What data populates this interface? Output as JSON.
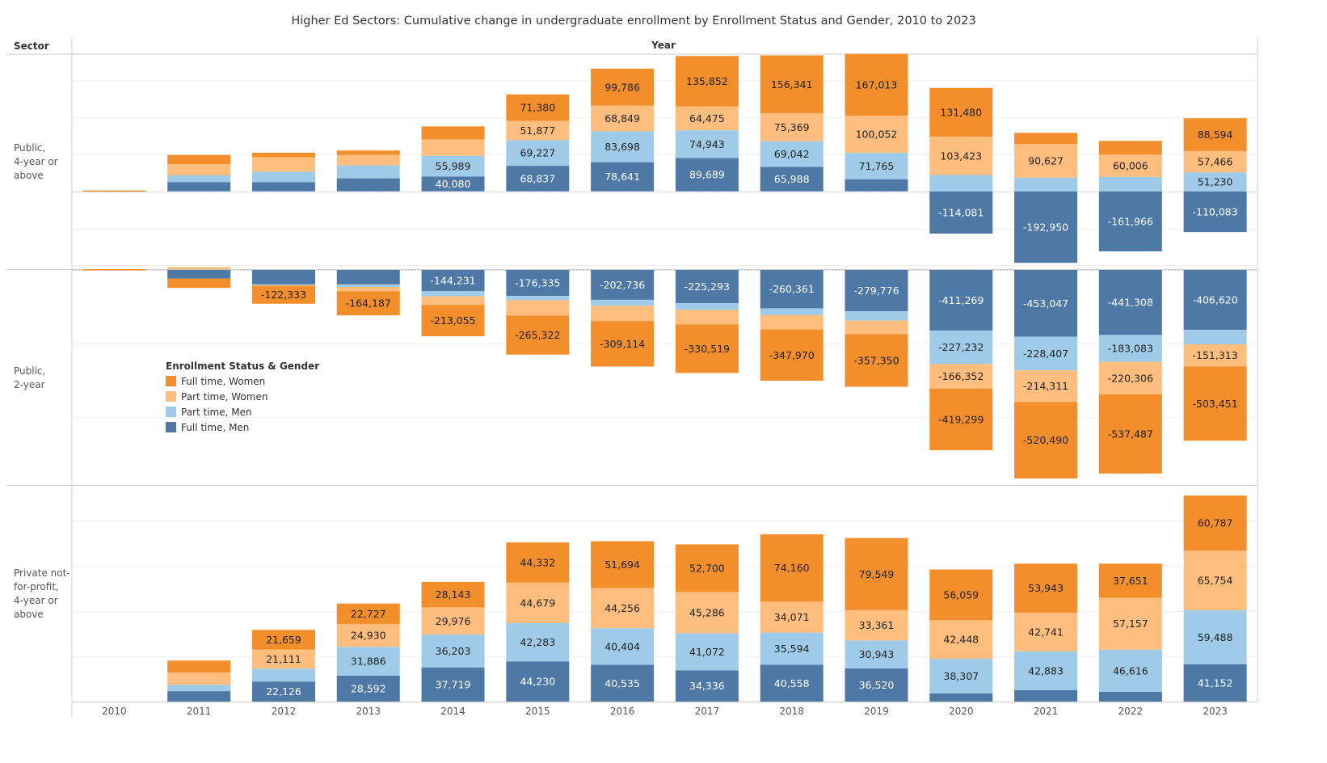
{
  "chart_data": {
    "type": "bar",
    "stacked": true,
    "title": "Higher Ed Sectors: Cumulative change in undergraduate enrollment by Enrollment Status and Gender, 2010 to 2023",
    "row_header": "Sector",
    "column_header": "Year",
    "xlabel": "",
    "ylabel": "",
    "categories": [
      "2010",
      "2011",
      "2012",
      "2013",
      "2014",
      "2015",
      "2016",
      "2017",
      "2018",
      "2019",
      "2020",
      "2021",
      "2022",
      "2023"
    ],
    "legend": {
      "title": "Enrollment Status & Gender",
      "position": "inside-middle-left",
      "entries": [
        {
          "name": "Full time, Women",
          "color": "#f28e2b"
        },
        {
          "name": "Part time, Women",
          "color": "#ffbe7d"
        },
        {
          "name": "Part time, Men",
          "color": "#a0cbe8"
        },
        {
          "name": "Full time, Men",
          "color": "#4e79a7"
        }
      ]
    },
    "series_order_note": "stack order from baseline: Full time Men, Part time Men, Part time Women, Full time Women",
    "panels": [
      {
        "sector": "Public,\n4-year or\nabove",
        "sector_lines": [
          "Public,",
          "4-year or",
          "above"
        ],
        "ylim": [
          -210000,
          370000
        ],
        "gridlines": [
          -200000,
          -100000,
          100000,
          200000,
          300000
        ],
        "series": [
          {
            "name": "Full time, Men",
            "values": [
              0,
              25000,
              25000,
              35000,
              40080,
              68837,
              78641,
              89689,
              65988,
              32000,
              -114081,
              -192950,
              -161966,
              -110083
            ],
            "labels": [
              null,
              null,
              null,
              null,
              "40,080",
              "68,837",
              "78,641",
              "89,689",
              "65,988",
              null,
              "-114,081",
              "-192,950",
              "-161,966",
              "-110,083"
            ]
          },
          {
            "name": "Part time, Men",
            "values": [
              0,
              18000,
              28000,
              35000,
              55989,
              69227,
              83698,
              74943,
              69042,
              71765,
              44000,
              37000,
              39000,
              51230
            ],
            "labels": [
              null,
              null,
              null,
              null,
              "55,989",
              "69,227",
              "83,698",
              "74,943",
              "69,042",
              "71,765",
              null,
              null,
              null,
              "51,230"
            ]
          },
          {
            "name": "Part time, Women",
            "values": [
              0,
              30000,
              39000,
              28000,
              44000,
              51877,
              68849,
              64475,
              75369,
              100052,
              103423,
              90627,
              60006,
              57466
            ],
            "labels": [
              null,
              null,
              null,
              null,
              null,
              "51,877",
              "68,849",
              "64,475",
              "75,369",
              "100,052",
              "103,423",
              "90,627",
              "60,006",
              "57,466"
            ]
          },
          {
            "name": "Full time, Women",
            "values": [
              0,
              25000,
              12000,
              12000,
              35000,
              71380,
              99786,
              135852,
              156341,
              167013,
              131480,
              30000,
              37000,
              88594
            ],
            "labels": [
              null,
              null,
              null,
              null,
              null,
              "71,380",
              "99,786",
              "135,852",
              "156,341",
              "167,013",
              "131,480",
              null,
              null,
              "88,594"
            ]
          }
        ]
      },
      {
        "sector": "Public,\n2-year",
        "sector_lines": [
          "Public,",
          "2-year"
        ],
        "ylim": [
          -1460000,
          0
        ],
        "gridlines": [
          -500000,
          -1000000
        ],
        "series": [
          {
            "name": "Full time, Men",
            "values": [
              0,
              -58000,
              -98000,
              -98000,
              -144231,
              -176335,
              -202736,
              -225293,
              -260361,
              -279776,
              -411269,
              -453047,
              -441308,
              -406620
            ],
            "labels": [
              null,
              null,
              null,
              null,
              "-144,231",
              "-176,335",
              "-202,736",
              "-225,293",
              "-260,361",
              "-279,776",
              "-411,269",
              "-453,047",
              "-441,308",
              "-406,620"
            ]
          },
          {
            "name": "Part time, Men",
            "values": [
              0,
              3000,
              -6000,
              -17000,
              -35000,
              -29000,
              -40000,
              -46000,
              -46000,
              -64000,
              -227232,
              -228407,
              -183083,
              -98000
            ],
            "labels": [
              null,
              null,
              null,
              null,
              null,
              null,
              null,
              null,
              null,
              null,
              "-227,232",
              "-228,407",
              "-183,083",
              null
            ]
          },
          {
            "name": "Part time, Women",
            "values": [
              0,
              17000,
              -3000,
              -29000,
              -58000,
              -104000,
              -104000,
              -98000,
              -98000,
              -92000,
              -166352,
              -214311,
              -220306,
              -151313
            ],
            "labels": [
              null,
              null,
              null,
              null,
              null,
              null,
              null,
              null,
              null,
              null,
              "-166,352",
              "-214,311",
              "-220,306",
              "-151,313"
            ]
          },
          {
            "name": "Full time, Women",
            "values": [
              0,
              -64000,
              -122333,
              -164187,
              -213055,
              -265322,
              -309114,
              -330519,
              -347970,
              -357350,
              -419299,
              -520490,
              -537487,
              -503451
            ],
            "labels": [
              null,
              null,
              "-122,333",
              "-164,187",
              "-213,055",
              "-265,322",
              "-309,114",
              "-330,519",
              "-347,970",
              "-357,350",
              "-419,299",
              "-520,490",
              "-537,487",
              "-503,451"
            ]
          }
        ]
      },
      {
        "sector": "Private not-\nfor-profit,\n4-year or\nabove",
        "sector_lines": [
          "Private not-",
          "for-profit,",
          "4-year or",
          "above"
        ],
        "ylim": [
          0,
          238000
        ],
        "gridlines": [
          50000,
          100000,
          150000,
          200000
        ],
        "series": [
          {
            "name": "Full time, Men",
            "values": [
              0,
              11500,
              22126,
              28592,
              37719,
              44230,
              40535,
              34336,
              40558,
              36520,
              8900,
              12500,
              10700,
              41152
            ],
            "labels": [
              null,
              null,
              "22,126",
              "28,592",
              "37,719",
              "44,230",
              "40,535",
              "34,336",
              "40,558",
              "36,520",
              null,
              null,
              null,
              "41,152"
            ]
          },
          {
            "name": "Part time, Men",
            "values": [
              0,
              7100,
              14200,
              31886,
              36203,
              42283,
              40404,
              41072,
              35594,
              30943,
              38307,
              42883,
              46616,
              59488
            ],
            "labels": [
              null,
              null,
              null,
              "31,886",
              "36,203",
              "42,283",
              "40,404",
              "41,072",
              "35,594",
              "30,943",
              "38,307",
              "42,883",
              "46,616",
              "59,488"
            ]
          },
          {
            "name": "Part time, Women",
            "values": [
              0,
              13300,
              21111,
              24930,
              29976,
              44679,
              44256,
              45286,
              34071,
              33361,
              42448,
              42741,
              57157,
              65754
            ],
            "labels": [
              null,
              null,
              "21,111",
              "24,930",
              "29,976",
              "44,679",
              "44,256",
              "45,286",
              "34,071",
              "33,361",
              "42,448",
              "42,741",
              "57,157",
              "65,754"
            ]
          },
          {
            "name": "Full time, Women",
            "values": [
              0,
              13300,
              21659,
              22727,
              28143,
              44332,
              51694,
              52700,
              74160,
              79549,
              56059,
              53943,
              37651,
              60787
            ],
            "labels": [
              null,
              null,
              "21,659",
              "22,727",
              "28,143",
              "44,332",
              "51,694",
              "52,700",
              "74,160",
              "79,549",
              "56,059",
              "53,943",
              "37,651",
              "60,787"
            ]
          }
        ]
      }
    ]
  }
}
